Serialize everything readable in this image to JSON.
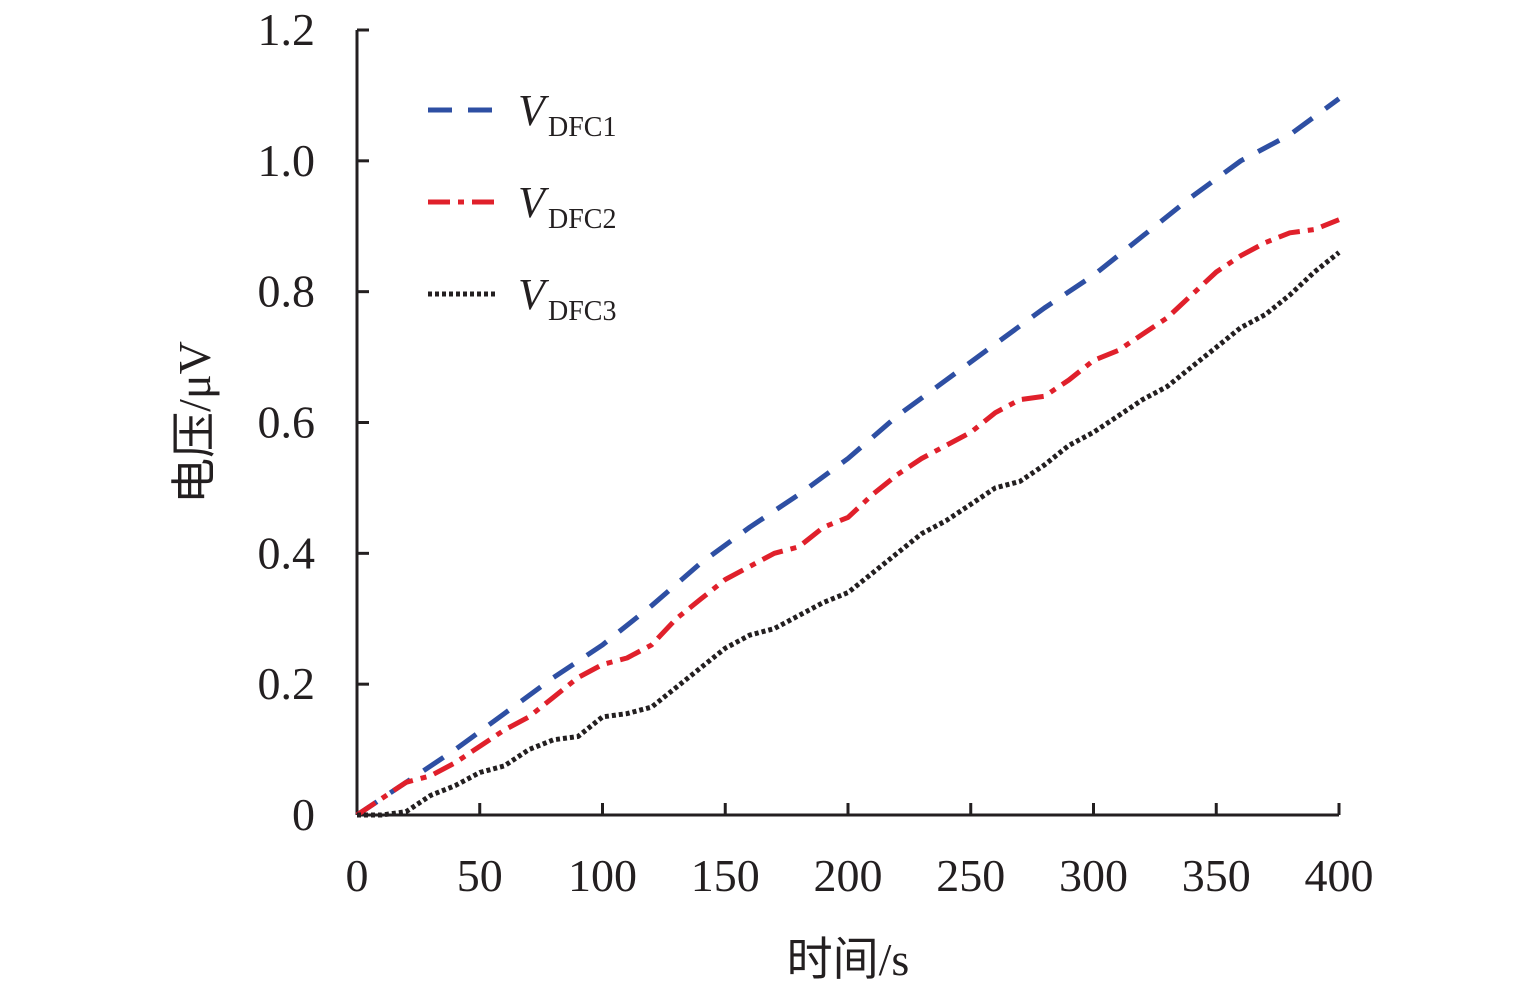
{
  "chart_data": {
    "type": "line",
    "xlabel": "时间/s",
    "ylabel": "电压/μV",
    "xlim": [
      0,
      400
    ],
    "ylim": [
      0,
      1.2
    ],
    "xticks": [
      0,
      50,
      100,
      150,
      200,
      250,
      300,
      350,
      400
    ],
    "xtick_labels": [
      "0",
      "50",
      "100",
      "150",
      "200",
      "250",
      "300",
      "350",
      "400"
    ],
    "yticks": [
      0,
      0.2,
      0.4,
      0.6,
      0.8,
      1.0,
      1.2
    ],
    "ytick_labels": [
      "0",
      "0.2",
      "0.4",
      "0.6",
      "0.8",
      "1.0",
      "1.2"
    ],
    "grid": false,
    "legend_position": "top-left",
    "series": [
      {
        "name_main": "V",
        "name_sub": "DFC1",
        "color": "#2e4fa3",
        "dash": "dashed",
        "x": [
          0,
          20,
          40,
          60,
          80,
          100,
          120,
          140,
          160,
          180,
          200,
          220,
          240,
          260,
          280,
          300,
          320,
          340,
          360,
          380,
          400
        ],
        "y": [
          0,
          0.05,
          0.1,
          0.155,
          0.21,
          0.26,
          0.32,
          0.385,
          0.44,
          0.49,
          0.545,
          0.61,
          0.665,
          0.72,
          0.775,
          0.825,
          0.885,
          0.945,
          1.0,
          1.04,
          1.095
        ]
      },
      {
        "name_main": "V",
        "name_sub": "DFC2",
        "color": "#e0202b",
        "dash": "dashdot",
        "x": [
          0,
          10,
          20,
          30,
          40,
          50,
          60,
          70,
          80,
          90,
          100,
          110,
          120,
          130,
          140,
          150,
          160,
          170,
          180,
          190,
          200,
          210,
          220,
          230,
          240,
          250,
          260,
          270,
          280,
          290,
          300,
          310,
          320,
          330,
          340,
          350,
          360,
          370,
          380,
          390,
          400
        ],
        "y": [
          0,
          0.025,
          0.05,
          0.06,
          0.08,
          0.105,
          0.13,
          0.15,
          0.18,
          0.21,
          0.23,
          0.24,
          0.26,
          0.3,
          0.33,
          0.36,
          0.38,
          0.4,
          0.41,
          0.44,
          0.455,
          0.49,
          0.52,
          0.545,
          0.565,
          0.585,
          0.615,
          0.635,
          0.64,
          0.665,
          0.695,
          0.71,
          0.735,
          0.76,
          0.795,
          0.83,
          0.855,
          0.875,
          0.89,
          0.895,
          0.91
        ]
      },
      {
        "name_main": "V",
        "name_sub": "DFC3",
        "color": "#231f20",
        "dash": "dotted",
        "x": [
          0,
          10,
          20,
          30,
          40,
          50,
          60,
          70,
          80,
          90,
          100,
          110,
          120,
          130,
          140,
          150,
          160,
          170,
          180,
          190,
          200,
          210,
          220,
          230,
          240,
          250,
          260,
          270,
          280,
          290,
          300,
          310,
          320,
          330,
          340,
          350,
          360,
          370,
          380,
          390,
          400
        ],
        "y": [
          0,
          0,
          0.005,
          0.03,
          0.045,
          0.065,
          0.075,
          0.1,
          0.115,
          0.12,
          0.15,
          0.155,
          0.165,
          0.195,
          0.225,
          0.255,
          0.275,
          0.285,
          0.305,
          0.325,
          0.34,
          0.37,
          0.4,
          0.43,
          0.45,
          0.475,
          0.5,
          0.51,
          0.535,
          0.565,
          0.585,
          0.61,
          0.635,
          0.655,
          0.685,
          0.715,
          0.745,
          0.765,
          0.795,
          0.83,
          0.86
        ]
      }
    ]
  }
}
